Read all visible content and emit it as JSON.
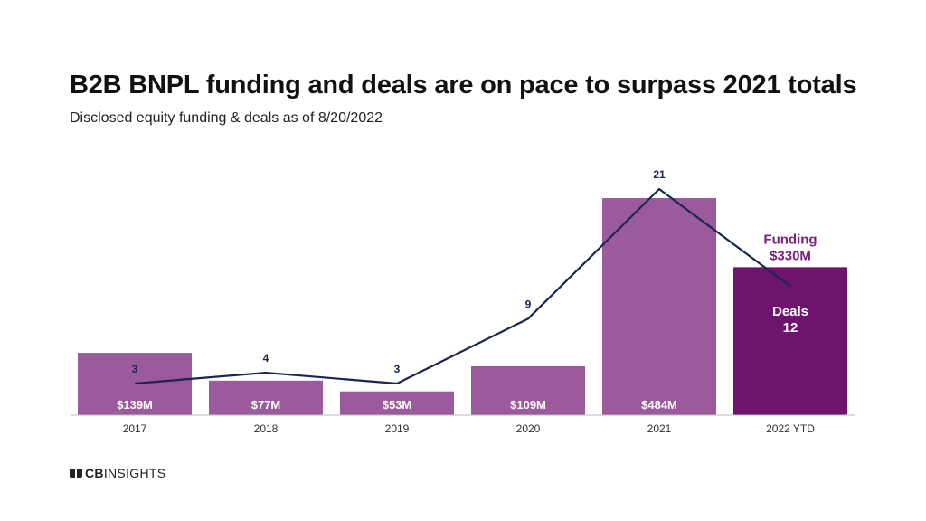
{
  "header": {
    "title": "B2B BNPL funding and deals are on pace to surpass 2021 totals",
    "subtitle": "Disclosed equity funding & deals as of 8/20/2022"
  },
  "logo": {
    "brand_bold": "CB",
    "brand_rest": "INSIGHTS"
  },
  "colors": {
    "bar": "#9b5a9c",
    "bar_highlight": "#6e146e",
    "line": "#1a2550",
    "funding_label": "#7a1f7a"
  },
  "chart_data": {
    "type": "bar",
    "categories": [
      "2017",
      "2018",
      "2019",
      "2020",
      "2021",
      "2022 YTD"
    ],
    "series": [
      {
        "name": "Funding",
        "values": [
          139,
          77,
          53,
          109,
          484,
          330
        ],
        "labels": [
          "$139M",
          "$77M",
          "$53M",
          "$109M",
          "$484M",
          "$330M"
        ]
      },
      {
        "name": "Deals",
        "type": "line",
        "values": [
          3,
          4,
          3,
          9,
          21,
          12
        ],
        "labels": [
          "3",
          "4",
          "3",
          "9",
          "21",
          "12"
        ]
      }
    ],
    "title": "B2B BNPL funding and deals are on pace to surpass 2021 totals",
    "subtitle": "Disclosed equity funding & deals as of 8/20/2022",
    "xlabel": "",
    "ylabel": "",
    "ylim": [
      0,
      484
    ],
    "grid": false,
    "legend": "none"
  }
}
